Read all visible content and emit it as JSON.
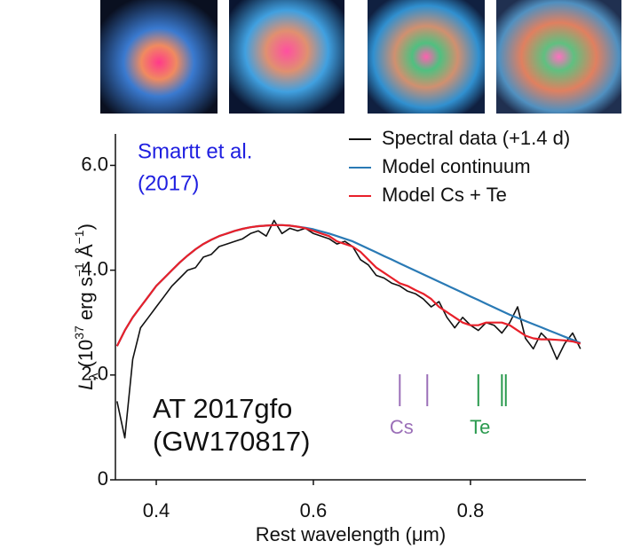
{
  "chart_data": {
    "type": "line",
    "xlabel": "Rest wavelength (μm)",
    "ylabel_parts": [
      "L",
      "λ",
      " (10",
      "37",
      " erg s",
      "−1",
      " Å",
      "−1",
      ")"
    ],
    "annotations": [
      "Smartt et al.",
      "(2017)",
      "AT 2017gfo",
      "(GW170817)"
    ],
    "xlim": [
      0.348,
      0.947
    ],
    "ylim": [
      0,
      6.6
    ],
    "xticks": [
      0.4,
      0.6,
      0.8
    ],
    "yticks": [
      0,
      {
        "value": 2,
        "label": "2.0"
      },
      {
        "value": 4,
        "label": "4.0"
      },
      {
        "value": 6,
        "label": "6.0"
      }
    ],
    "x": [
      0.35,
      0.36,
      0.37,
      0.38,
      0.39,
      0.4,
      0.41,
      0.42,
      0.43,
      0.44,
      0.45,
      0.46,
      0.47,
      0.48,
      0.49,
      0.5,
      0.51,
      0.52,
      0.53,
      0.54,
      0.55,
      0.56,
      0.57,
      0.58,
      0.59,
      0.6,
      0.61,
      0.62,
      0.63,
      0.64,
      0.65,
      0.66,
      0.67,
      0.68,
      0.69,
      0.7,
      0.71,
      0.72,
      0.73,
      0.74,
      0.75,
      0.76,
      0.77,
      0.78,
      0.79,
      0.8,
      0.81,
      0.82,
      0.83,
      0.84,
      0.85,
      0.86,
      0.87,
      0.88,
      0.89,
      0.9,
      0.91,
      0.92,
      0.93,
      0.94
    ],
    "series": [
      {
        "name": "Spectral data (+1.4 d)",
        "color": "#111111",
        "values": [
          1.5,
          0.8,
          2.3,
          2.9,
          3.1,
          3.3,
          3.5,
          3.7,
          3.85,
          4.0,
          4.05,
          4.25,
          4.3,
          4.45,
          4.5,
          4.55,
          4.6,
          4.7,
          4.75,
          4.65,
          4.95,
          4.7,
          4.8,
          4.75,
          4.8,
          4.7,
          4.65,
          4.6,
          4.5,
          4.55,
          4.45,
          4.2,
          4.1,
          3.9,
          3.85,
          3.75,
          3.7,
          3.6,
          3.55,
          3.45,
          3.3,
          3.4,
          3.1,
          2.9,
          3.1,
          2.95,
          2.85,
          3.0,
          2.95,
          2.8,
          3.0,
          3.3,
          2.7,
          2.5,
          2.8,
          2.65,
          2.3,
          2.6,
          2.8,
          2.5
        ]
      },
      {
        "name": "Model continuum",
        "color": "#2a7ab5",
        "values": [
          2.55,
          2.85,
          3.1,
          3.3,
          3.5,
          3.7,
          3.85,
          4.0,
          4.15,
          4.28,
          4.4,
          4.5,
          4.58,
          4.65,
          4.7,
          4.75,
          4.79,
          4.82,
          4.84,
          4.85,
          4.86,
          4.86,
          4.85,
          4.83,
          4.81,
          4.78,
          4.74,
          4.7,
          4.65,
          4.6,
          4.55,
          4.48,
          4.41,
          4.34,
          4.27,
          4.2,
          4.13,
          4.06,
          3.99,
          3.92,
          3.85,
          3.78,
          3.71,
          3.64,
          3.57,
          3.5,
          3.43,
          3.36,
          3.29,
          3.22,
          3.15,
          3.09,
          3.03,
          2.97,
          2.91,
          2.85,
          2.79,
          2.73,
          2.67,
          2.61
        ]
      },
      {
        "name": "Model Cs + Te",
        "color": "#e8202a",
        "values": [
          2.55,
          2.85,
          3.1,
          3.3,
          3.5,
          3.7,
          3.85,
          4.0,
          4.15,
          4.28,
          4.4,
          4.5,
          4.58,
          4.65,
          4.7,
          4.75,
          4.79,
          4.82,
          4.84,
          4.85,
          4.86,
          4.86,
          4.85,
          4.83,
          4.8,
          4.75,
          4.7,
          4.65,
          4.55,
          4.5,
          4.45,
          4.35,
          4.2,
          4.05,
          3.95,
          3.85,
          3.75,
          3.7,
          3.62,
          3.55,
          3.45,
          3.3,
          3.2,
          3.1,
          3.0,
          2.95,
          2.95,
          3.0,
          3.0,
          3.0,
          2.95,
          2.85,
          2.75,
          2.7,
          2.68,
          2.68,
          2.67,
          2.66,
          2.64,
          2.6
        ]
      }
    ],
    "line_markers": [
      {
        "label": "Cs",
        "color": "#9b6fb8",
        "x": [
          0.71,
          0.745
        ]
      },
      {
        "label": "Te",
        "color": "#2a9a4e",
        "x": [
          0.81,
          0.84,
          0.845
        ]
      }
    ]
  }
}
